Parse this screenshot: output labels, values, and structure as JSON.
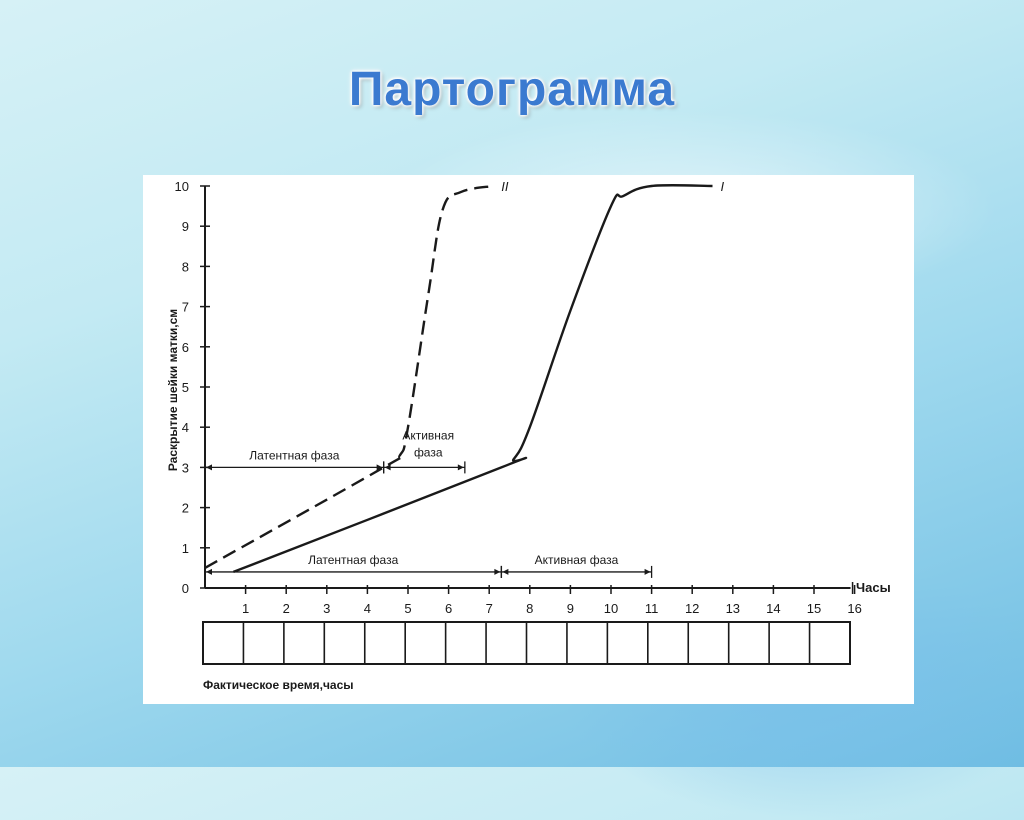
{
  "title": "Партограмма",
  "colors": {
    "title": "#3b7ad0",
    "ink": "#1a1a1a"
  },
  "chart_data": {
    "type": "line",
    "ylabel": "Раскрытие шейки матки,см",
    "xlabel": "Часы",
    "footer_label": "Фактическое время,часы",
    "xlim": [
      0,
      16
    ],
    "ylim": [
      0,
      10
    ],
    "x_ticks": [
      "1",
      "2",
      "3",
      "4",
      "5",
      "6",
      "7",
      "8",
      "9",
      "10",
      "11",
      "12",
      "13",
      "14",
      "15",
      "16"
    ],
    "y_ticks": [
      "0",
      "1",
      "2",
      "3",
      "4",
      "5",
      "6",
      "7",
      "8",
      "9",
      "10"
    ],
    "series": [
      {
        "name": "I",
        "style": "solid",
        "x": [
          0.7,
          7.3,
          7.6,
          8.0,
          9.0,
          10.0,
          10.3,
          11.0,
          12.5
        ],
        "y": [
          0.4,
          3.0,
          3.2,
          4.0,
          6.9,
          9.5,
          9.75,
          10.0,
          10.0
        ]
      },
      {
        "name": "II",
        "style": "dashed",
        "x": [
          0.0,
          4.4,
          4.8,
          5.0,
          5.5,
          5.85,
          6.3,
          7.1
        ],
        "y": [
          0.5,
          3.0,
          3.3,
          4.0,
          7.3,
          9.4,
          9.85,
          10.0
        ]
      }
    ],
    "annotations": [
      {
        "text": "Латентная фаза",
        "y": 3,
        "x_from": 0,
        "x_to": 4.4
      },
      {
        "text": "Активная фаза",
        "y": 3,
        "x_from": 4.4,
        "x_to": 6.4
      },
      {
        "text": "Латентная фаза",
        "y": 0.4,
        "x_from": 0,
        "x_to": 7.3
      },
      {
        "text": "Активная фаза",
        "y": 0.4,
        "x_from": 7.3,
        "x_to": 11.0
      }
    ],
    "time_boxes": 16
  }
}
